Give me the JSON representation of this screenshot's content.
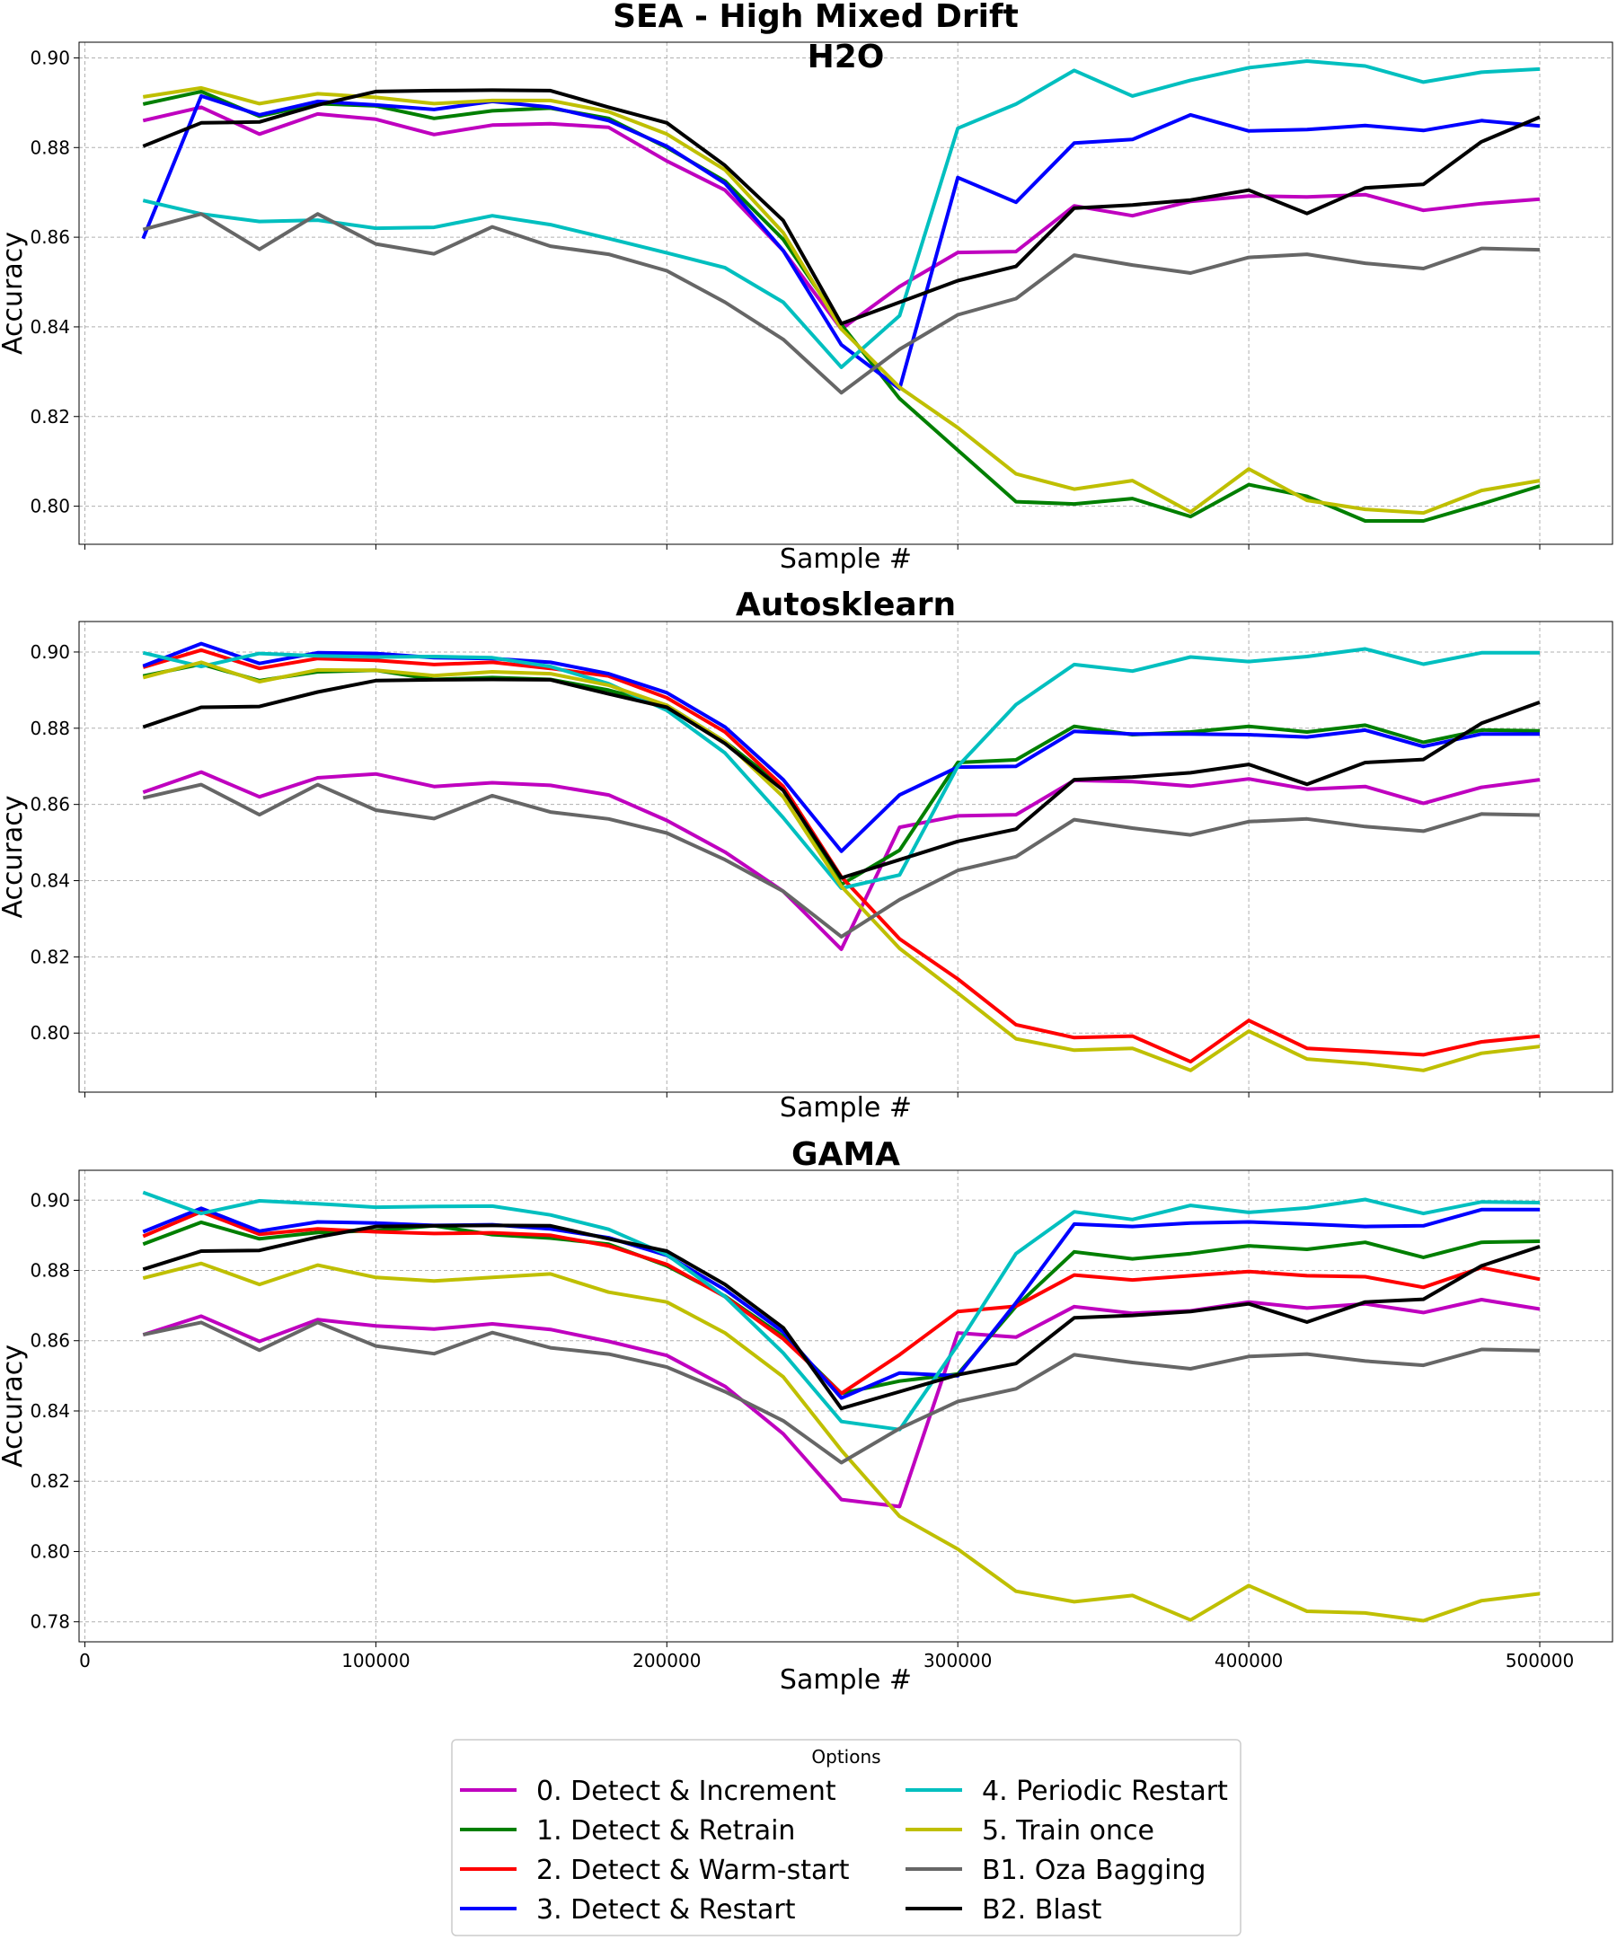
{
  "suptitle": "SEA - High Mixed Drift",
  "legend": {
    "title": "Options",
    "placement": "lower-center"
  },
  "series_styles": [
    {
      "name": "0. Detect & Increment",
      "color": "#bf00bf"
    },
    {
      "name": "1. Detect & Retrain",
      "color": "#007f00"
    },
    {
      "name": "2. Detect & Warm-start",
      "color": "#ff0000"
    },
    {
      "name": "3. Detect & Restart",
      "color": "#0000ff"
    },
    {
      "name": "4. Periodic Restart",
      "color": "#00bfbf"
    },
    {
      "name": "5. Train once",
      "color": "#bfbf00"
    },
    {
      "name": "B1. Oza Bagging",
      "color": "#666666"
    },
    {
      "name": "B2. Blast",
      "color": "#000000"
    }
  ],
  "chart_data": [
    {
      "type": "line",
      "title": "H2O",
      "xlabel": "Sample #",
      "ylabel": "Accuracy",
      "xlim": [
        -2000,
        525000
      ],
      "ylim": [
        0.7915,
        0.9035
      ],
      "yticks": [
        0.8,
        0.82,
        0.84,
        0.86,
        0.88,
        0.9
      ],
      "ytick_labels": [
        "0.80",
        "0.82",
        "0.84",
        "0.86",
        "0.88",
        "0.90"
      ],
      "xticks": [],
      "xtick_labels": [],
      "grid": true,
      "x": [
        20000,
        40000,
        60000,
        80000,
        100000,
        120000,
        140000,
        160000,
        180000,
        200000,
        220000,
        240000,
        260000,
        280000,
        300000,
        320000,
        340000,
        360000,
        380000,
        400000,
        420000,
        440000,
        460000,
        480000,
        500000
      ],
      "series": [
        {
          "name": "0. Detect & Increment",
          "values": [
            0.886,
            0.889,
            0.883,
            0.8875,
            0.8863,
            0.8829,
            0.885,
            0.8853,
            0.8845,
            0.877,
            0.8705,
            0.857,
            0.8395,
            0.849,
            0.8566,
            0.8568,
            0.867,
            0.8648,
            0.868,
            0.8692,
            0.869,
            0.8695,
            0.866,
            0.8675,
            0.8685
          ]
        },
        {
          "name": "1. Detect & Retrain",
          "values": [
            0.8897,
            0.8925,
            0.887,
            0.8898,
            0.8893,
            0.8865,
            0.8882,
            0.8888,
            0.8865,
            0.88,
            0.8725,
            0.8595,
            0.8405,
            0.824,
            0.8125,
            0.801,
            0.8005,
            0.8017,
            0.7977,
            0.8048,
            0.8022,
            0.7967,
            0.7967,
            0.8005,
            0.8045
          ]
        },
        {
          "name": "3. Detect & Restart",
          "values": [
            0.8597,
            0.8915,
            0.8873,
            0.8903,
            0.8895,
            0.8885,
            0.8903,
            0.889,
            0.886,
            0.8803,
            0.872,
            0.857,
            0.836,
            0.8262,
            0.8733,
            0.8678,
            0.881,
            0.8818,
            0.8873,
            0.8837,
            0.884,
            0.8849,
            0.8838,
            0.886,
            0.8848
          ]
        },
        {
          "name": "4. Periodic Restart",
          "values": [
            0.8682,
            0.8652,
            0.8635,
            0.8638,
            0.862,
            0.8622,
            0.8648,
            0.8628,
            0.8597,
            0.8565,
            0.8532,
            0.8455,
            0.831,
            0.8425,
            0.8843,
            0.8897,
            0.8972,
            0.8915,
            0.895,
            0.8978,
            0.8993,
            0.8982,
            0.8946,
            0.8968,
            0.8975
          ]
        },
        {
          "name": "5. Train once",
          "values": [
            0.8913,
            0.8933,
            0.8898,
            0.892,
            0.8912,
            0.8898,
            0.8905,
            0.8905,
            0.888,
            0.883,
            0.875,
            0.861,
            0.8395,
            0.8265,
            0.8175,
            0.8072,
            0.8038,
            0.8057,
            0.7987,
            0.8083,
            0.8013,
            0.7993,
            0.7985,
            0.8035,
            0.8057
          ]
        },
        {
          "name": "B1. Oza Bagging",
          "values": [
            0.8617,
            0.8652,
            0.8573,
            0.8652,
            0.8585,
            0.8563,
            0.8623,
            0.858,
            0.8562,
            0.8525,
            0.8455,
            0.8372,
            0.8253,
            0.835,
            0.8427,
            0.8463,
            0.856,
            0.8538,
            0.852,
            0.8555,
            0.8562,
            0.8542,
            0.853,
            0.8575,
            0.8572
          ]
        },
        {
          "name": "B2. Blast",
          "values": [
            0.8803,
            0.8855,
            0.8857,
            0.8895,
            0.8925,
            0.8927,
            0.8928,
            0.8927,
            0.889,
            0.8855,
            0.876,
            0.8637,
            0.8407,
            0.8455,
            0.8503,
            0.8535,
            0.8665,
            0.8672,
            0.8683,
            0.8705,
            0.8653,
            0.871,
            0.8718,
            0.8813,
            0.8868
          ]
        }
      ]
    },
    {
      "type": "line",
      "title": "Autosklearn",
      "xlabel": "Sample #",
      "ylabel": "Accuracy",
      "xlim": [
        -2000,
        525000
      ],
      "ylim": [
        0.7845,
        0.908
      ],
      "yticks": [
        0.8,
        0.82,
        0.84,
        0.86,
        0.88,
        0.9
      ],
      "ytick_labels": [
        "0.80",
        "0.82",
        "0.84",
        "0.86",
        "0.88",
        "0.90"
      ],
      "xticks": [],
      "xtick_labels": [],
      "grid": true,
      "x": [
        20000,
        40000,
        60000,
        80000,
        100000,
        120000,
        140000,
        160000,
        180000,
        200000,
        220000,
        240000,
        260000,
        280000,
        300000,
        320000,
        340000,
        360000,
        380000,
        400000,
        420000,
        440000,
        460000,
        480000,
        500000
      ],
      "series": [
        {
          "name": "0. Detect & Increment",
          "values": [
            0.8632,
            0.8685,
            0.862,
            0.867,
            0.868,
            0.8647,
            0.8657,
            0.865,
            0.8625,
            0.8558,
            0.8475,
            0.8372,
            0.822,
            0.854,
            0.857,
            0.8573,
            0.8663,
            0.866,
            0.8648,
            0.8667,
            0.864,
            0.8647,
            0.8603,
            0.8645,
            0.8665
          ]
        },
        {
          "name": "1. Detect & Retrain",
          "values": [
            0.8937,
            0.8968,
            0.8925,
            0.8948,
            0.8952,
            0.8928,
            0.8933,
            0.8928,
            0.89,
            0.886,
            0.8765,
            0.8645,
            0.839,
            0.848,
            0.871,
            0.8717,
            0.8805,
            0.8783,
            0.879,
            0.8805,
            0.879,
            0.8808,
            0.8763,
            0.8795,
            0.8793
          ]
        },
        {
          "name": "2. Detect & Warm-start",
          "values": [
            0.896,
            0.9005,
            0.8957,
            0.8983,
            0.8978,
            0.8967,
            0.8973,
            0.8957,
            0.8937,
            0.888,
            0.879,
            0.8647,
            0.841,
            0.8247,
            0.8142,
            0.8022,
            0.7988,
            0.7992,
            0.7925,
            0.8033,
            0.796,
            0.7952,
            0.7943,
            0.7977,
            0.7992
          ]
        },
        {
          "name": "3. Detect & Restart",
          "values": [
            0.8963,
            0.9022,
            0.897,
            0.8998,
            0.8996,
            0.8985,
            0.8983,
            0.8973,
            0.8943,
            0.8893,
            0.8803,
            0.8665,
            0.8477,
            0.8625,
            0.8698,
            0.87,
            0.8792,
            0.8785,
            0.8785,
            0.8783,
            0.8777,
            0.8795,
            0.8752,
            0.8785,
            0.8785
          ]
        },
        {
          "name": "4. Periodic Restart",
          "values": [
            0.8998,
            0.8962,
            0.8996,
            0.899,
            0.8987,
            0.8988,
            0.8985,
            0.8962,
            0.8917,
            0.8847,
            0.8735,
            0.8565,
            0.838,
            0.8415,
            0.87,
            0.8862,
            0.8967,
            0.895,
            0.8987,
            0.8975,
            0.8988,
            0.9008,
            0.8968,
            0.8998,
            0.8998
          ]
        },
        {
          "name": "5. Train once",
          "values": [
            0.8933,
            0.8973,
            0.8922,
            0.8953,
            0.8952,
            0.8938,
            0.8948,
            0.8943,
            0.8913,
            0.886,
            0.8765,
            0.862,
            0.8385,
            0.8222,
            0.8105,
            0.7985,
            0.7955,
            0.796,
            0.7902,
            0.8005,
            0.7932,
            0.792,
            0.7902,
            0.7947,
            0.7965
          ]
        },
        {
          "name": "B1. Oza Bagging",
          "values": [
            0.8617,
            0.8652,
            0.8573,
            0.8652,
            0.8585,
            0.8563,
            0.8623,
            0.858,
            0.8562,
            0.8525,
            0.8455,
            0.8372,
            0.8253,
            0.835,
            0.8427,
            0.8463,
            0.856,
            0.8538,
            0.852,
            0.8555,
            0.8562,
            0.8542,
            0.853,
            0.8575,
            0.8572
          ]
        },
        {
          "name": "B2. Blast",
          "values": [
            0.8803,
            0.8855,
            0.8857,
            0.8895,
            0.8925,
            0.8927,
            0.8928,
            0.8927,
            0.889,
            0.8855,
            0.876,
            0.8637,
            0.8407,
            0.8455,
            0.8503,
            0.8535,
            0.8665,
            0.8672,
            0.8683,
            0.8705,
            0.8653,
            0.871,
            0.8718,
            0.8813,
            0.8868
          ]
        }
      ]
    },
    {
      "type": "line",
      "title": "GAMA",
      "xlabel": "Sample #",
      "ylabel": "Accuracy",
      "xlim": [
        -2000,
        525000
      ],
      "ylim": [
        0.7743,
        0.9085
      ],
      "yticks": [
        0.78,
        0.8,
        0.82,
        0.84,
        0.86,
        0.88,
        0.9
      ],
      "ytick_labels": [
        "0.78",
        "0.80",
        "0.82",
        "0.84",
        "0.86",
        "0.88",
        "0.90"
      ],
      "xticks": [
        0,
        100000,
        200000,
        300000,
        400000,
        500000
      ],
      "xtick_labels": [
        "0",
        "100000",
        "200000",
        "300000",
        "400000",
        "500000"
      ],
      "grid": true,
      "x": [
        20000,
        40000,
        60000,
        80000,
        100000,
        120000,
        140000,
        160000,
        180000,
        200000,
        220000,
        240000,
        260000,
        280000,
        300000,
        320000,
        340000,
        360000,
        380000,
        400000,
        420000,
        440000,
        460000,
        480000,
        500000
      ],
      "series": [
        {
          "name": "0. Detect & Increment",
          "values": [
            0.8617,
            0.867,
            0.8598,
            0.866,
            0.8642,
            0.8633,
            0.8648,
            0.8632,
            0.8598,
            0.8558,
            0.847,
            0.8335,
            0.8148,
            0.8128,
            0.8622,
            0.861,
            0.8697,
            0.8678,
            0.8685,
            0.871,
            0.8693,
            0.8705,
            0.868,
            0.8717,
            0.869
          ]
        },
        {
          "name": "1. Detect & Retrain",
          "values": [
            0.8875,
            0.8937,
            0.889,
            0.8908,
            0.8913,
            0.8927,
            0.8902,
            0.8892,
            0.8875,
            0.8813,
            0.8727,
            0.8612,
            0.845,
            0.8485,
            0.8505,
            0.8698,
            0.8853,
            0.8833,
            0.8848,
            0.887,
            0.886,
            0.888,
            0.8837,
            0.888,
            0.8883
          ]
        },
        {
          "name": "2. Detect & Warm-start",
          "values": [
            0.8897,
            0.8967,
            0.8903,
            0.8918,
            0.891,
            0.8905,
            0.8907,
            0.89,
            0.887,
            0.8817,
            0.8725,
            0.8605,
            0.845,
            0.856,
            0.8683,
            0.8698,
            0.8787,
            0.8773,
            0.8785,
            0.8797,
            0.8785,
            0.8782,
            0.8752,
            0.8808,
            0.8775
          ]
        },
        {
          "name": "3. Detect & Restart",
          "values": [
            0.891,
            0.8977,
            0.8912,
            0.8938,
            0.8935,
            0.8928,
            0.893,
            0.8918,
            0.8893,
            0.8843,
            0.8745,
            0.8625,
            0.8437,
            0.8508,
            0.85,
            0.8708,
            0.8932,
            0.8925,
            0.8935,
            0.8938,
            0.8932,
            0.8925,
            0.8927,
            0.8973,
            0.8973
          ]
        },
        {
          "name": "4. Periodic Restart",
          "values": [
            0.9022,
            0.8962,
            0.8998,
            0.899,
            0.898,
            0.8982,
            0.8983,
            0.8958,
            0.8917,
            0.8845,
            0.8725,
            0.8565,
            0.837,
            0.8347,
            0.8588,
            0.8848,
            0.8967,
            0.8945,
            0.8985,
            0.8965,
            0.8978,
            0.9002,
            0.8962,
            0.8995,
            0.8993
          ]
        },
        {
          "name": "5. Train once",
          "values": [
            0.8778,
            0.882,
            0.876,
            0.8815,
            0.878,
            0.877,
            0.878,
            0.879,
            0.8738,
            0.871,
            0.8622,
            0.8497,
            0.8288,
            0.81,
            0.8007,
            0.7887,
            0.7857,
            0.7875,
            0.7805,
            0.7903,
            0.783,
            0.7825,
            0.7803,
            0.786,
            0.788
          ]
        },
        {
          "name": "B1. Oza Bagging",
          "values": [
            0.8617,
            0.8652,
            0.8573,
            0.8652,
            0.8585,
            0.8563,
            0.8623,
            0.858,
            0.8562,
            0.8525,
            0.8455,
            0.8372,
            0.8253,
            0.835,
            0.8427,
            0.8463,
            0.856,
            0.8538,
            0.852,
            0.8555,
            0.8562,
            0.8542,
            0.853,
            0.8575,
            0.8572
          ]
        },
        {
          "name": "B2. Blast",
          "values": [
            0.8803,
            0.8855,
            0.8857,
            0.8895,
            0.8925,
            0.8927,
            0.8928,
            0.8927,
            0.889,
            0.8855,
            0.876,
            0.8637,
            0.8407,
            0.8455,
            0.8503,
            0.8535,
            0.8665,
            0.8672,
            0.8683,
            0.8705,
            0.8653,
            0.871,
            0.8718,
            0.8813,
            0.8868
          ]
        }
      ]
    }
  ]
}
